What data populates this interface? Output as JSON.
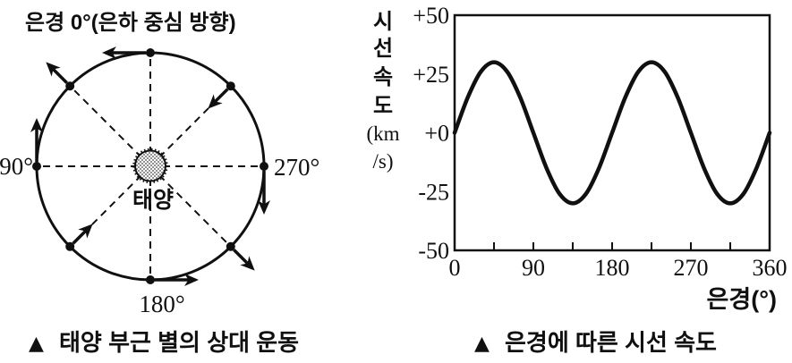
{
  "page": {
    "background": "#ffffff",
    "ink_color": "#101010"
  },
  "left_panel": {
    "top_label": "은경 0°(은하 중심 방향)",
    "sun_label": "태양",
    "label_90": "90°",
    "label_180": "180°",
    "label_270": "270°",
    "caption_marker": "▲",
    "caption": "태양 부근 별의 상대 운동",
    "star_points": [
      {
        "deg": 0,
        "motion": "tangent_increasing"
      },
      {
        "deg": 45,
        "motion": "outward"
      },
      {
        "deg": 90,
        "motion": "tangent_decreasing"
      },
      {
        "deg": 135,
        "motion": "inward"
      },
      {
        "deg": 180,
        "motion": "tangent_increasing"
      },
      {
        "deg": 225,
        "motion": "outward"
      },
      {
        "deg": 270,
        "motion": "tangent_decreasing"
      },
      {
        "deg": 315,
        "motion": "inward"
      }
    ]
  },
  "right_panel": {
    "caption_marker": "▲",
    "caption": "은경에 따른 시선 속도"
  },
  "chart_data": {
    "type": "line",
    "title": "은경에 따른 시선 속도",
    "xlabel": "은경(°)",
    "ylabel": "시선 속도(km/s)",
    "ylabel_lines": [
      "시",
      "선",
      "속",
      "도",
      "(km",
      "/s)"
    ],
    "xlim": [
      0,
      360
    ],
    "ylim": [
      -50,
      50
    ],
    "xticks": [
      0,
      90,
      180,
      270,
      360
    ],
    "xtick_labels": [
      "0",
      "90",
      "180",
      "270",
      "360"
    ],
    "minor_xtick_step": 45,
    "ytick_values": [
      50,
      25,
      0,
      -25,
      -50
    ],
    "ytick_labels": [
      "+50",
      "+25",
      "+0",
      "-25",
      "-50"
    ],
    "grid": false,
    "legend": null,
    "x": [
      0,
      15,
      30,
      45,
      60,
      75,
      90,
      105,
      120,
      135,
      150,
      165,
      180,
      195,
      210,
      225,
      240,
      255,
      270,
      285,
      300,
      315,
      330,
      345,
      360
    ],
    "y": [
      0,
      15,
      26,
      30,
      26,
      15,
      0,
      -15,
      -26,
      -30,
      -26,
      -15,
      0,
      15,
      26,
      30,
      26,
      15,
      0,
      -15,
      -26,
      -30,
      -26,
      -15,
      0
    ]
  }
}
